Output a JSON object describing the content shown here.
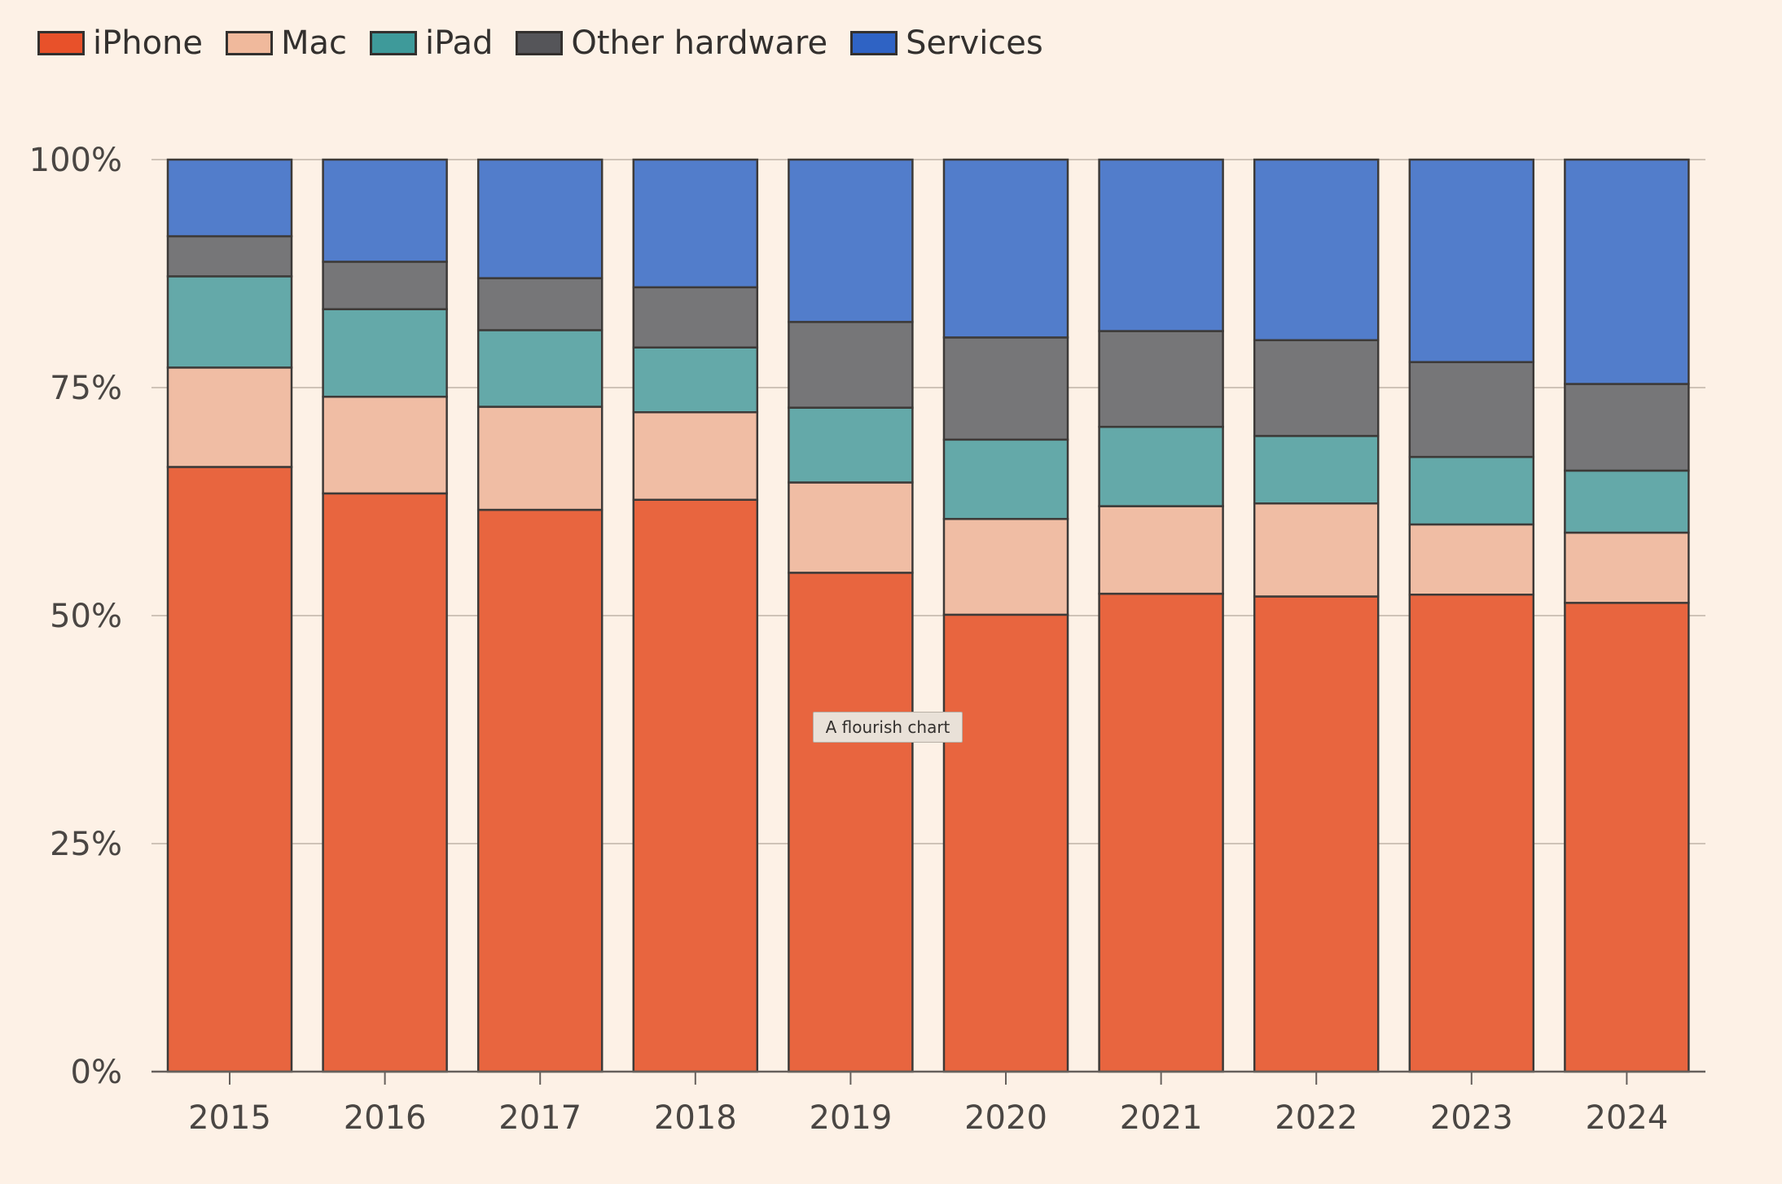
{
  "legend": [
    {
      "label": "iPhone",
      "color": "#e8512a"
    },
    {
      "label": "Mac",
      "color": "#f0b99c"
    },
    {
      "label": "iPad",
      "color": "#3e9a9a"
    },
    {
      "label": "Other hardware",
      "color": "#555559"
    },
    {
      "label": "Services",
      "color": "#2f63c4"
    }
  ],
  "watermark": "A flourish chart",
  "chart_data": {
    "type": "bar",
    "stacked": true,
    "categories": [
      "2015",
      "2016",
      "2017",
      "2018",
      "2019",
      "2020",
      "2021",
      "2022",
      "2023",
      "2024"
    ],
    "series": [
      {
        "name": "iPhone",
        "color": "#e8653f",
        "values": [
          66.3,
          63.4,
          61.6,
          62.7,
          54.7,
          50.1,
          52.4,
          52.1,
          52.3,
          51.4
        ]
      },
      {
        "name": "Mac",
        "color": "#f0bda4",
        "values": [
          10.9,
          10.6,
          11.3,
          9.6,
          9.9,
          10.5,
          9.6,
          10.2,
          7.7,
          7.7
        ]
      },
      {
        "name": "iPad",
        "color": "#64a9a9",
        "values": [
          10.0,
          9.6,
          8.4,
          7.1,
          8.2,
          8.7,
          8.7,
          7.4,
          7.4,
          6.8
        ]
      },
      {
        "name": "Other hardware",
        "color": "#767678",
        "values": [
          4.4,
          5.2,
          5.7,
          6.6,
          9.4,
          11.2,
          10.5,
          10.5,
          10.4,
          9.5
        ]
      },
      {
        "name": "Services",
        "color": "#527dcb",
        "values": [
          8.4,
          11.2,
          13.0,
          14.0,
          17.8,
          19.5,
          18.8,
          19.8,
          22.2,
          24.6
        ]
      }
    ],
    "y_ticks": [
      "0%",
      "25%",
      "50%",
      "75%",
      "100%"
    ],
    "y_tick_values": [
      0,
      25,
      50,
      75,
      100
    ],
    "ylim": [
      0,
      100
    ],
    "xlabel": "",
    "ylabel": "",
    "grid": true,
    "legend_position": "top-left"
  }
}
